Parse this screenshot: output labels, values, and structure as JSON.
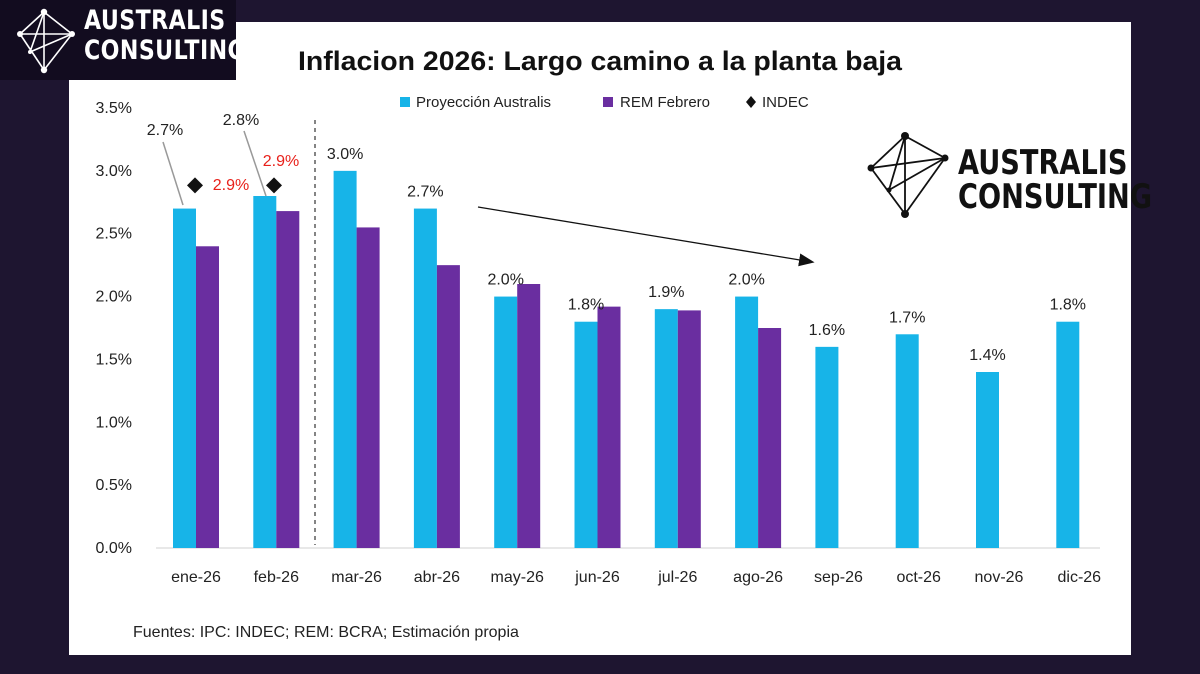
{
  "logo": {
    "line1": "AUSTRALIS",
    "line2": "CONSULTING"
  },
  "source_note": "Fuentes: IPC: INDEC; REM: BCRA; Estimación propia",
  "chart_data": {
    "type": "bar",
    "title": "Inflacion 2026: Largo camino a la planta baja",
    "categories": [
      "ene-26",
      "feb-26",
      "mar-26",
      "abr-26",
      "may-26",
      "jun-26",
      "jul-26",
      "ago-26",
      "sep-26",
      "oct-26",
      "nov-26",
      "dic-26"
    ],
    "series": [
      {
        "name": "Proyección Australis",
        "color": "#17b4e8",
        "values": [
          2.7,
          2.8,
          3.0,
          2.7,
          2.0,
          1.8,
          1.9,
          2.0,
          1.6,
          1.7,
          1.4,
          1.8
        ],
        "labels": [
          "2.7%",
          "2.8%",
          "3.0%",
          "2.7%",
          "2.0%",
          "1.8%",
          "1.9%",
          "2.0%",
          "1.6%",
          "1.7%",
          "1.4%",
          "1.8%"
        ]
      },
      {
        "name": "REM Febrero",
        "color": "#6a2ea0",
        "values": [
          2.4,
          2.68,
          2.55,
          2.25,
          2.1,
          1.92,
          1.89,
          1.75,
          null,
          null,
          null,
          null
        ]
      },
      {
        "name": "INDEC",
        "marker": "diamond",
        "color": "#111111",
        "values": [
          2.9,
          2.9,
          null,
          null,
          null,
          null,
          null,
          null,
          null,
          null,
          null,
          null
        ],
        "labels": [
          "2.9%",
          "2.9%"
        ],
        "label_color": "#e8201a"
      }
    ],
    "y_ticks": [
      "0.0%",
      "0.5%",
      "1.0%",
      "1.5%",
      "2.0%",
      "2.5%",
      "3.0%",
      "3.5%"
    ],
    "ylim": [
      0,
      3.5
    ],
    "annotations": [
      "dashed vertical separator between feb-26 and mar-26",
      "downward trend arrow from abr-26 to sep-26"
    ],
    "legend_position": "top-center"
  }
}
